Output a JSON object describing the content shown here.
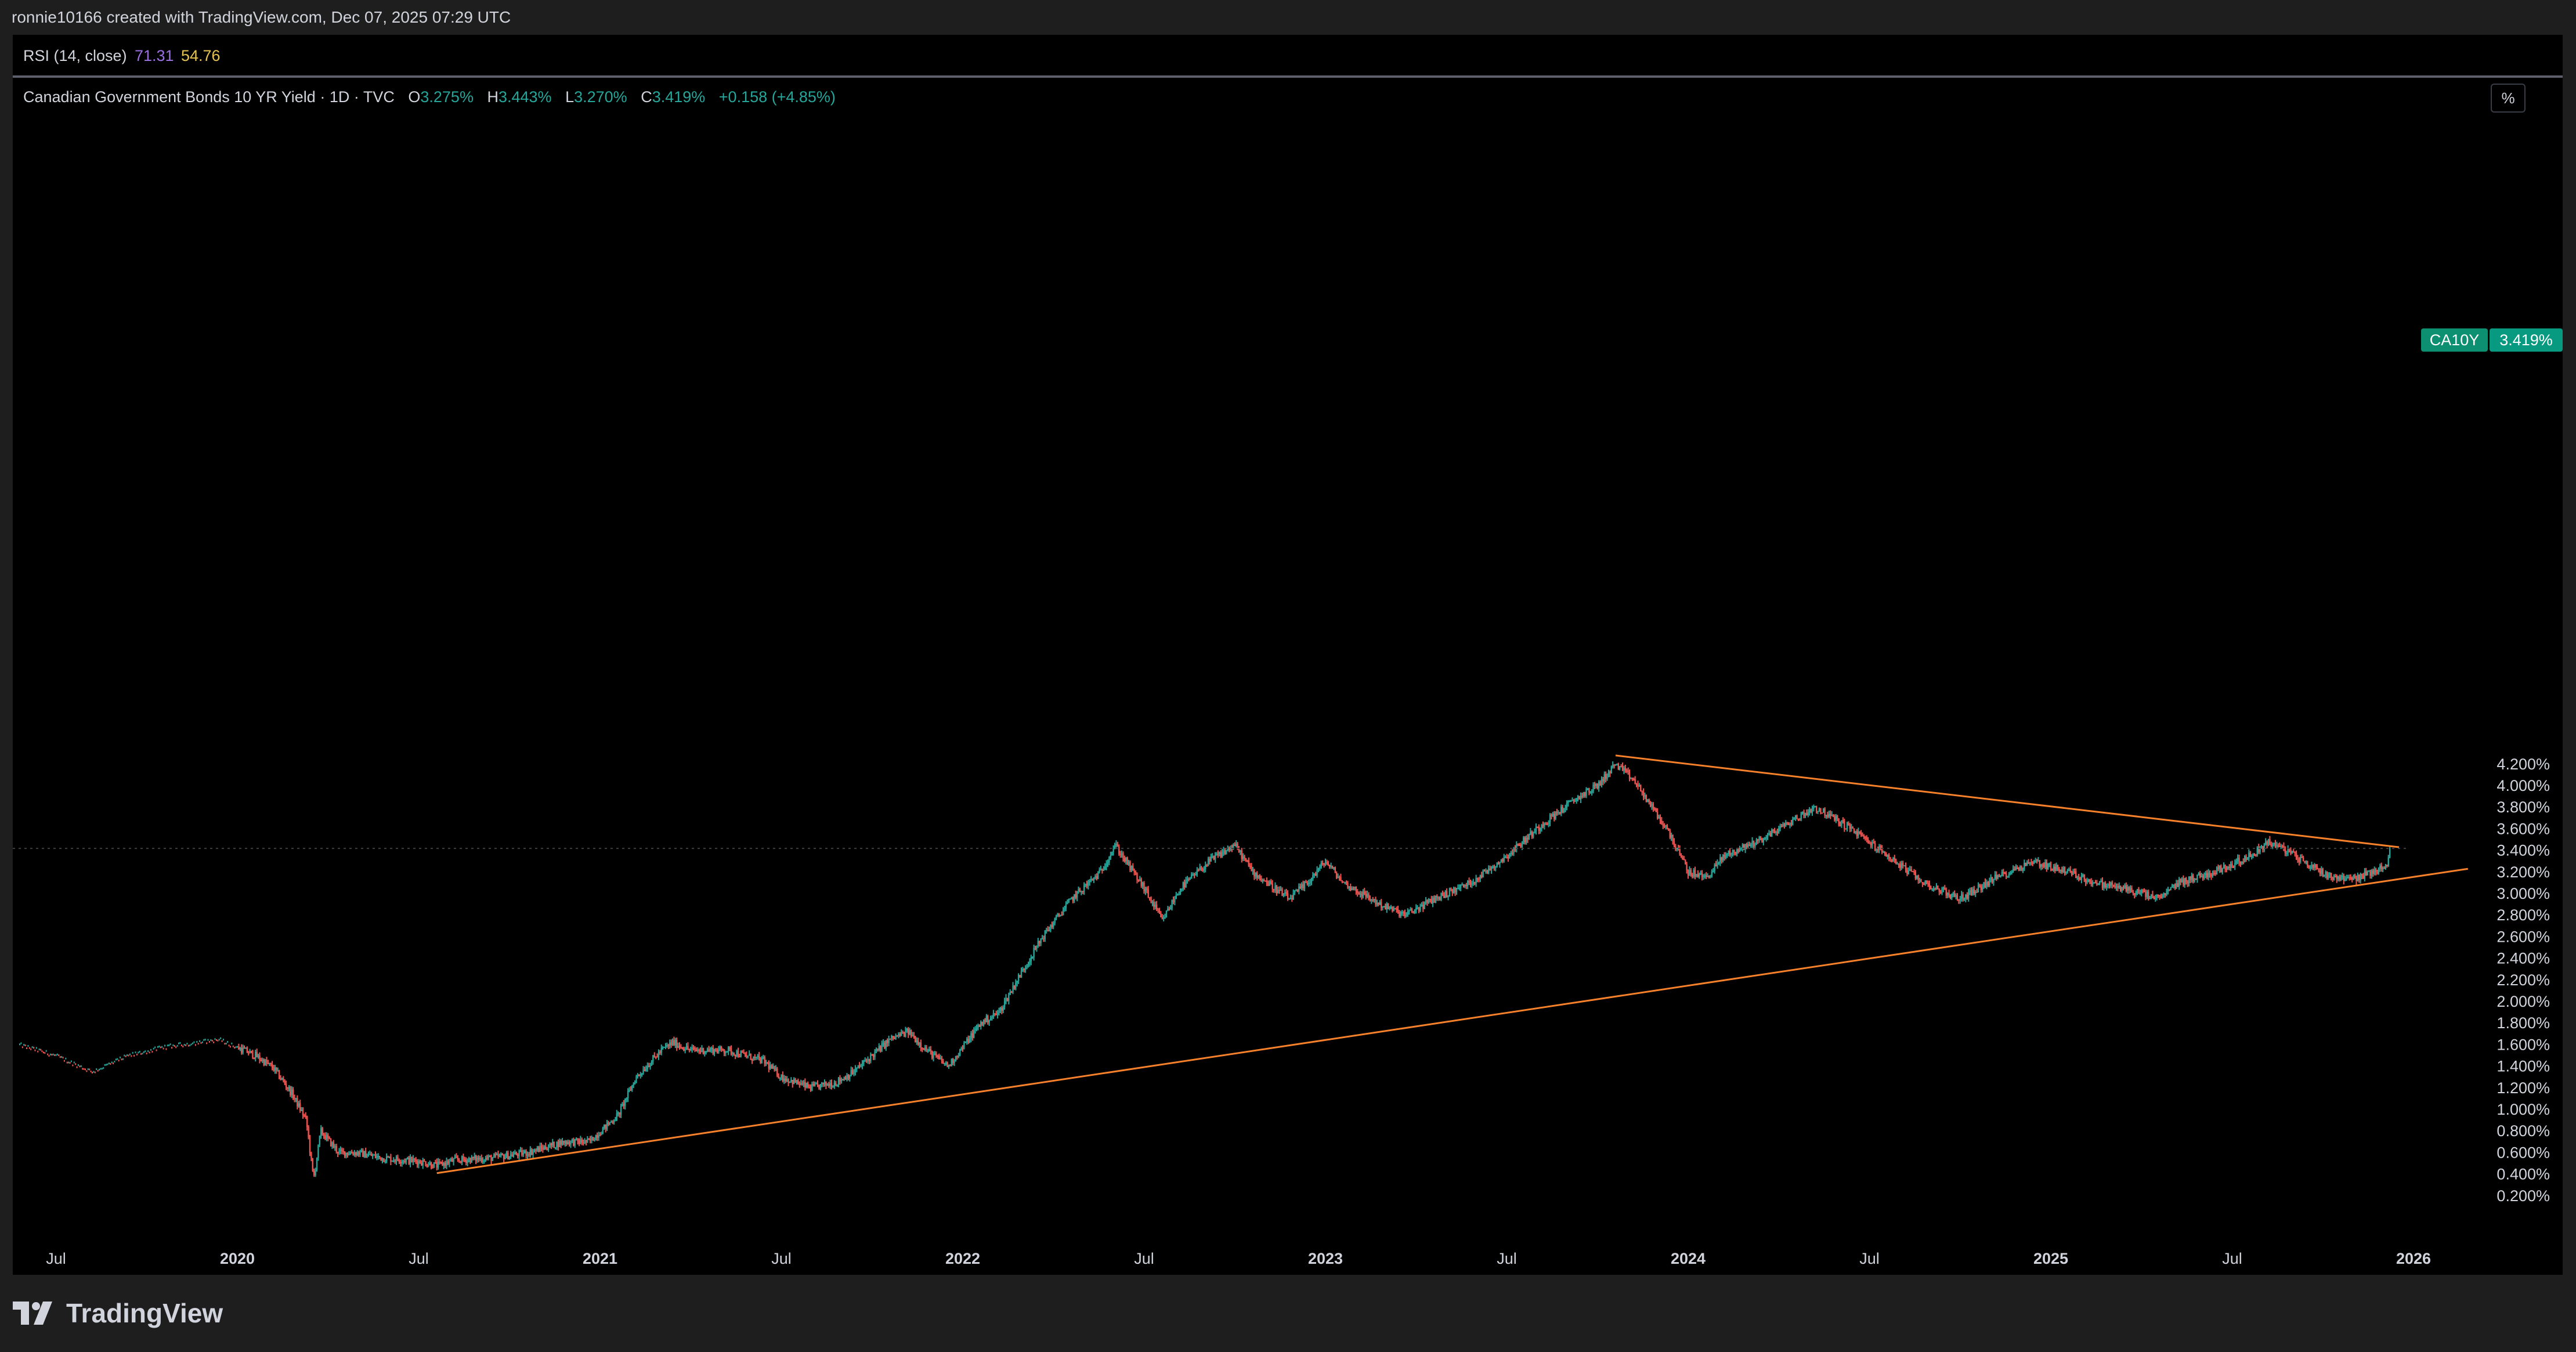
{
  "header": {
    "credit": "ronnie10166 created with TradingView.com, Dec 07, 2025 07:29 UTC"
  },
  "indicator": {
    "label": "RSI (14, close)",
    "value1": "71.31",
    "value2": "54.76",
    "color1": "#9c6fe4",
    "color2": "#e6c44f"
  },
  "legend": {
    "title": "Canadian Government Bonds 10 YR Yield · 1D · TVC",
    "open_key": "O",
    "open": "3.275%",
    "high_key": "H",
    "high": "3.443%",
    "low_key": "L",
    "low": "3.270%",
    "close_key": "C",
    "close": "3.419%",
    "change": "+0.158 (+4.85%)"
  },
  "scale_button": "%",
  "badge": {
    "symbol": "CA10Y",
    "value": "3.419%"
  },
  "footer": {
    "brand": "TradingView",
    "logo_icon": "tradingview-logo-icon"
  },
  "colors": {
    "up": "#26a69a",
    "down": "#ef5350",
    "trendline": "#f7812a",
    "background": "#000000"
  },
  "chart_data": {
    "type": "candlestick",
    "title": "Canadian Government Bonds 10 YR Yield",
    "interval": "1D",
    "source": "TVC",
    "ylabel": "%",
    "ylim": [
      0.1,
      4.35
    ],
    "y_ticks": [
      "4.200%",
      "4.000%",
      "3.800%",
      "3.600%",
      "3.400%",
      "3.200%",
      "3.000%",
      "2.800%",
      "2.600%",
      "2.400%",
      "2.200%",
      "2.000%",
      "1.800%",
      "1.600%",
      "1.400%",
      "1.200%",
      "1.000%",
      "0.800%",
      "0.600%",
      "0.400%",
      "0.200%"
    ],
    "x_ticks": [
      {
        "label": "Jul",
        "t": 2019.5,
        "year": false
      },
      {
        "label": "2020",
        "t": 2020.0,
        "year": true
      },
      {
        "label": "Jul",
        "t": 2020.5,
        "year": false
      },
      {
        "label": "2021",
        "t": 2021.0,
        "year": true
      },
      {
        "label": "Jul",
        "t": 2021.5,
        "year": false
      },
      {
        "label": "2022",
        "t": 2022.0,
        "year": true
      },
      {
        "label": "Jul",
        "t": 2022.5,
        "year": false
      },
      {
        "label": "2023",
        "t": 2023.0,
        "year": true
      },
      {
        "label": "Jul",
        "t": 2023.5,
        "year": false
      },
      {
        "label": "2024",
        "t": 2024.0,
        "year": true
      },
      {
        "label": "Jul",
        "t": 2024.5,
        "year": false
      },
      {
        "label": "2025",
        "t": 2025.0,
        "year": true
      },
      {
        "label": "Jul",
        "t": 2025.5,
        "year": false
      },
      {
        "label": "2026",
        "t": 2026.0,
        "year": true
      }
    ],
    "series_path": [
      [
        2019.4,
        1.6
      ],
      [
        2019.5,
        1.5
      ],
      [
        2019.6,
        1.35
      ],
      [
        2019.7,
        1.5
      ],
      [
        2019.8,
        1.58
      ],
      [
        2019.95,
        1.65
      ],
      [
        2020.05,
        1.5
      ],
      [
        2020.1,
        1.38
      ],
      [
        2020.15,
        1.15
      ],
      [
        2020.19,
        0.9
      ],
      [
        2020.21,
        0.35
      ],
      [
        2020.23,
        0.8
      ],
      [
        2020.28,
        0.6
      ],
      [
        2020.33,
        0.6
      ],
      [
        2020.4,
        0.55
      ],
      [
        2020.5,
        0.52
      ],
      [
        2020.55,
        0.48
      ],
      [
        2020.6,
        0.53
      ],
      [
        2020.7,
        0.55
      ],
      [
        2020.8,
        0.6
      ],
      [
        2020.9,
        0.7
      ],
      [
        2020.97,
        0.7
      ],
      [
        2021.05,
        0.95
      ],
      [
        2021.1,
        1.3
      ],
      [
        2021.17,
        1.55
      ],
      [
        2021.2,
        1.62
      ],
      [
        2021.25,
        1.55
      ],
      [
        2021.35,
        1.55
      ],
      [
        2021.45,
        1.45
      ],
      [
        2021.5,
        1.3
      ],
      [
        2021.58,
        1.2
      ],
      [
        2021.65,
        1.25
      ],
      [
        2021.7,
        1.35
      ],
      [
        2021.8,
        1.65
      ],
      [
        2021.85,
        1.72
      ],
      [
        2021.9,
        1.55
      ],
      [
        2021.96,
        1.4
      ],
      [
        2022.05,
        1.8
      ],
      [
        2022.1,
        1.9
      ],
      [
        2022.15,
        2.2
      ],
      [
        2022.22,
        2.6
      ],
      [
        2022.3,
        2.95
      ],
      [
        2022.38,
        3.2
      ],
      [
        2022.42,
        3.45
      ],
      [
        2022.45,
        3.3
      ],
      [
        2022.5,
        3.05
      ],
      [
        2022.55,
        2.75
      ],
      [
        2022.6,
        3.05
      ],
      [
        2022.68,
        3.3
      ],
      [
        2022.75,
        3.45
      ],
      [
        2022.8,
        3.2
      ],
      [
        2022.9,
        2.95
      ],
      [
        2022.95,
        3.1
      ],
      [
        2023.0,
        3.3
      ],
      [
        2023.05,
        3.1
      ],
      [
        2023.15,
        2.9
      ],
      [
        2023.22,
        2.8
      ],
      [
        2023.3,
        2.95
      ],
      [
        2023.4,
        3.1
      ],
      [
        2023.5,
        3.35
      ],
      [
        2023.6,
        3.65
      ],
      [
        2023.7,
        3.9
      ],
      [
        2023.75,
        4.0
      ],
      [
        2023.8,
        4.2
      ],
      [
        2023.85,
        4.05
      ],
      [
        2023.9,
        3.8
      ],
      [
        2023.95,
        3.55
      ],
      [
        2024.0,
        3.2
      ],
      [
        2024.05,
        3.15
      ],
      [
        2024.1,
        3.35
      ],
      [
        2024.2,
        3.5
      ],
      [
        2024.3,
        3.7
      ],
      [
        2024.35,
        3.8
      ],
      [
        2024.45,
        3.6
      ],
      [
        2024.55,
        3.35
      ],
      [
        2024.65,
        3.1
      ],
      [
        2024.75,
        2.95
      ],
      [
        2024.85,
        3.15
      ],
      [
        2024.95,
        3.3
      ],
      [
        2025.05,
        3.2
      ],
      [
        2025.12,
        3.1
      ],
      [
        2025.2,
        3.05
      ],
      [
        2025.3,
        2.95
      ],
      [
        2025.35,
        3.1
      ],
      [
        2025.45,
        3.2
      ],
      [
        2025.55,
        3.35
      ],
      [
        2025.6,
        3.48
      ],
      [
        2025.65,
        3.4
      ],
      [
        2025.72,
        3.25
      ],
      [
        2025.78,
        3.15
      ],
      [
        2025.85,
        3.15
      ],
      [
        2025.9,
        3.22
      ],
      [
        2025.93,
        3.28
      ],
      [
        2025.935,
        3.42
      ]
    ],
    "last_close": 3.419,
    "trendlines": [
      {
        "from": [
          2020.55,
          0.41
        ],
        "to": [
          2026.15,
          3.23
        ]
      },
      {
        "from": [
          2023.8,
          4.28
        ],
        "to": [
          2025.96,
          3.43
        ]
      }
    ]
  }
}
